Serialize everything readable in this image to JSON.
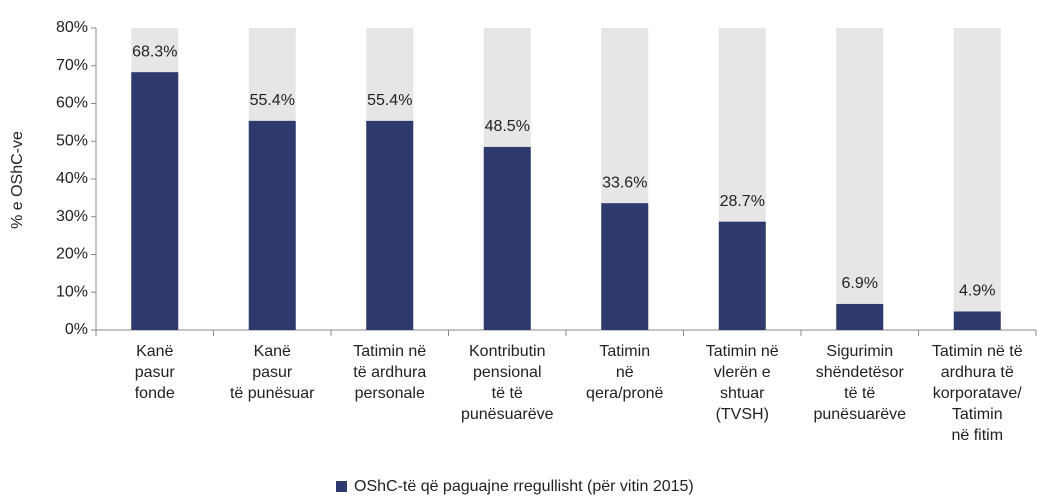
{
  "chart_data": {
    "type": "bar",
    "y_label": "% e OShC-ve",
    "categories": [
      [
        "Kanë",
        "pasur",
        "fonde"
      ],
      [
        "Kanë",
        "pasur",
        "të punësuar"
      ],
      [
        "Tatimin në",
        "të ardhura",
        "personale"
      ],
      [
        "Kontributin",
        "pensional",
        "të të",
        "punësuarëve"
      ],
      [
        "Tatimin",
        "në",
        "qera/pronë"
      ],
      [
        "Tatimin në",
        "vlerën e",
        "shtuar",
        "(TVSH)"
      ],
      [
        "Sigurimin",
        "shëndetësor",
        "të të",
        "punësuarëve"
      ],
      [
        "Tatimin në të",
        "ardhura të",
        "korporatave/",
        "Tatimin",
        "në fitim"
      ]
    ],
    "series": [
      {
        "name": "OShC-të që paguajne rregullisht (për vitin 2015)",
        "color": "#2e3a6e",
        "values": [
          68.3,
          55.4,
          55.4,
          48.5,
          33.6,
          28.7,
          6.9,
          4.9
        ],
        "value_labels": [
          "68.3%",
          "55.4%",
          "55.4%",
          "48.5%",
          "33.6%",
          "28.7%",
          "6.9%",
          "4.9%"
        ]
      }
    ],
    "ylim": [
      0,
      80
    ],
    "yticks": [
      {
        "value": 0,
        "label": "0%"
      },
      {
        "value": 10,
        "label": "10%"
      },
      {
        "value": 20,
        "label": "20%"
      },
      {
        "value": 30,
        "label": "30%"
      },
      {
        "value": 40,
        "label": "40%"
      },
      {
        "value": 50,
        "label": "50%"
      },
      {
        "value": 60,
        "label": "60%"
      },
      {
        "value": 70,
        "label": "70%"
      },
      {
        "value": 80,
        "label": "80%"
      }
    ],
    "legend": "bottom"
  }
}
